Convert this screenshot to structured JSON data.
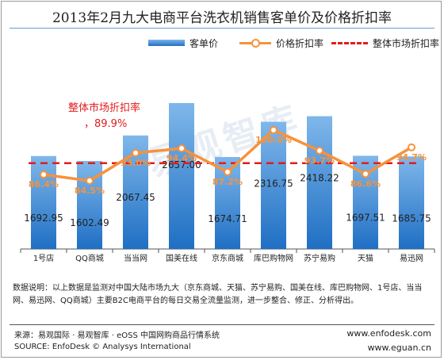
{
  "title": "2013年2月九大电商平台洗衣机销售客单价及价格折扣率",
  "legend": {
    "bar": "客单价",
    "line": "价格折扣率",
    "avg": "整体市场折扣率"
  },
  "annotation": {
    "label": "整体市场折扣率",
    "value": "，89.9%"
  },
  "watermark": "易观智库",
  "chart_data": {
    "type": "bar",
    "categories": [
      "1号店",
      "QQ商城",
      "当当网",
      "国美在线",
      "京东商城",
      "库巴购物网",
      "苏宁易购",
      "天猫",
      "易迅网"
    ],
    "series": [
      {
        "name": "客单价",
        "type": "bar",
        "values": [
          1692.95,
          1602.49,
          2067.45,
          2657.0,
          1674.71,
          2316.75,
          2418.22,
          1697.51,
          1685.75
        ],
        "labels": [
          "1692.95",
          "1602.49",
          "2067.45",
          "2657.00",
          "1674.71",
          "2316.75",
          "2418.22",
          "1697.51",
          "1685.75"
        ]
      },
      {
        "name": "价格折扣率",
        "type": "line",
        "values": [
          86.4,
          84.5,
          93.0,
          94.4,
          87.2,
          100.0,
          93.7,
          86.6,
          94.7
        ],
        "labels": [
          "86.4%",
          "84.5%",
          "93.0%",
          "94.4%",
          "87.2%",
          "100.0%",
          "93.7%",
          "86.6%",
          "94.7%"
        ]
      },
      {
        "name": "整体市场折扣率",
        "type": "line-dashed",
        "value": 89.9
      }
    ],
    "colors": {
      "bar_top": "#7fb7ea",
      "bar_bottom": "#1f6fc4",
      "line": "#f7923b",
      "avg": "#e31c1c"
    },
    "legend_position": "top"
  },
  "note": "数据说明：以上数据是监测对中国大陆市场九大（京东商城、天猫、苏宁易购、国美在线、库巴购物网、1号店、当当网、易迅网、QQ商城）主要B2C电商平台的每日交易全流量监测，进一步整合、修正、分析得出。",
  "source": {
    "cn": "来源：易观国际 · 易观智库 · eOSS 中国网购商品行情系统",
    "en": "SOURCE: EnfoDesk © Analysys International",
    "url1": "www.enfodesk.com",
    "url2": "www.eguan.cn"
  }
}
